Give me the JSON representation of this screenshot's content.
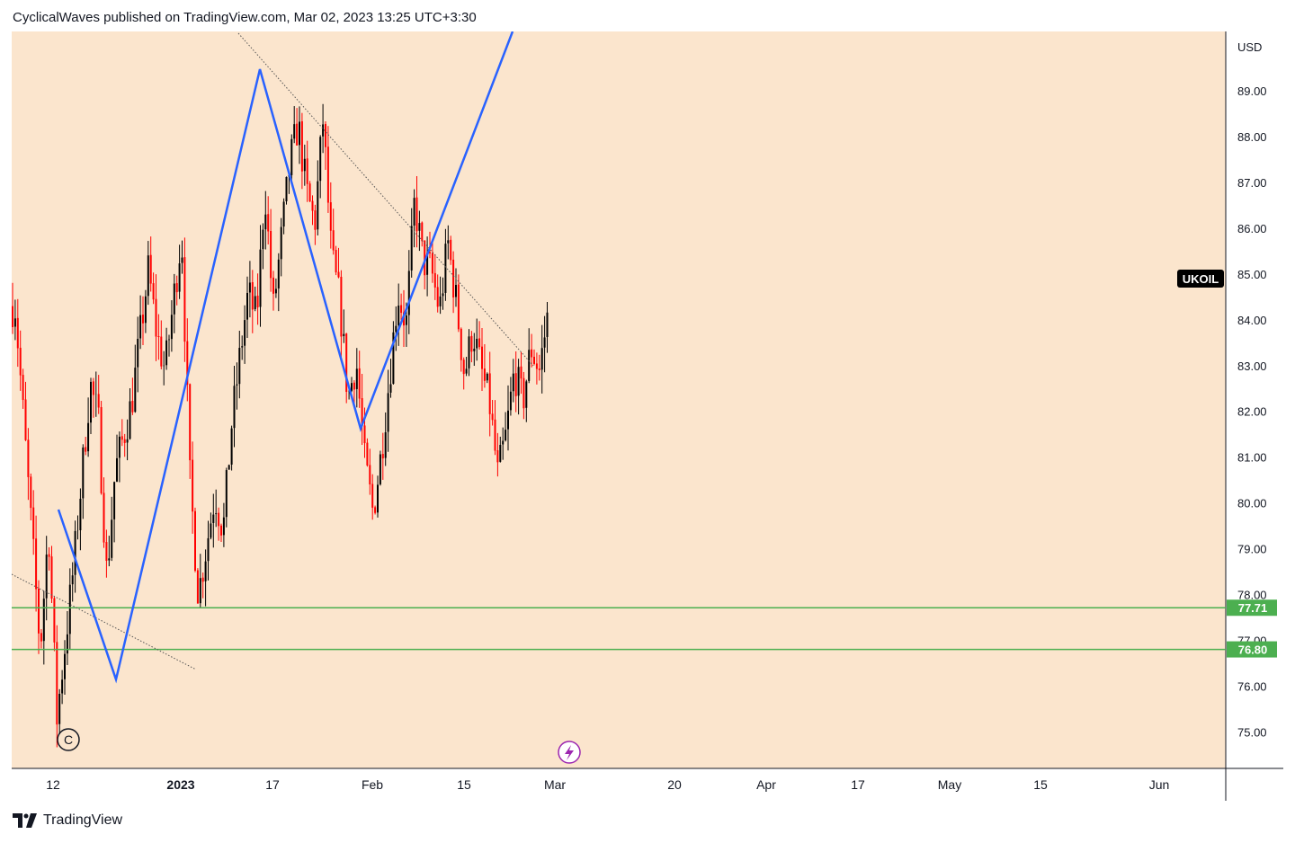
{
  "header": {
    "publisher": "CyclicalWaves",
    "published_text": "CyclicalWaves published on TradingView.com, Mar 02, 2023 13:25 UTC+3:30"
  },
  "footer": {
    "brand": "TradingView"
  },
  "colors": {
    "background": "#fbe5cd",
    "candle_up": "#000000",
    "candle_down": "#ff0000",
    "wave_line": "#2962ff",
    "support_line": "#4caf50",
    "trend_line": "#555555",
    "symbol_badge_bg": "#000000",
    "level_badge_bg": "#4caf50",
    "event_icon": "#9c27b0"
  },
  "chart_data": {
    "type": "candlestick",
    "symbol": "UKOIL",
    "currency": "USD",
    "ylim": [
      74.2,
      90.3
    ],
    "y_ticks": [
      "89.00",
      "88.00",
      "87.00",
      "86.00",
      "85.00",
      "84.00",
      "83.00",
      "82.00",
      "81.00",
      "80.00",
      "79.00",
      "78.00",
      "77.00",
      "76.00",
      "75.00"
    ],
    "x_ticks": [
      "12",
      "2023",
      "17",
      "Feb",
      "15",
      "Mar",
      "20",
      "Apr",
      "17",
      "May",
      "15",
      "Jun"
    ],
    "support_levels": [
      {
        "label": "77.71",
        "value": 77.71
      },
      {
        "label": "76.80",
        "value": 76.8
      }
    ],
    "wave_label": "C",
    "price_path": [
      {
        "d": 0,
        "p": 84.3
      },
      {
        "d": 3,
        "p": 76.8
      },
      {
        "d": 4,
        "p": 79.5
      },
      {
        "d": 5,
        "p": 75.3
      },
      {
        "d": 7,
        "p": 78.6
      },
      {
        "d": 9,
        "p": 82.6
      },
      {
        "d": 10,
        "p": 81.8
      },
      {
        "d": 11,
        "p": 78.4
      },
      {
        "d": 12,
        "p": 80.7
      },
      {
        "d": 14,
        "p": 82.2
      },
      {
        "d": 16,
        "p": 85.1
      },
      {
        "d": 17,
        "p": 83.7
      },
      {
        "d": 18,
        "p": 82.9
      },
      {
        "d": 20,
        "p": 85.9
      },
      {
        "d": 21,
        "p": 80.5
      },
      {
        "d": 22,
        "p": 78.0
      },
      {
        "d": 24,
        "p": 80.2
      },
      {
        "d": 25,
        "p": 79.4
      },
      {
        "d": 26,
        "p": 81.7
      },
      {
        "d": 27,
        "p": 83.2
      },
      {
        "d": 28,
        "p": 84.6
      },
      {
        "d": 29,
        "p": 84.0
      },
      {
        "d": 30,
        "p": 86.9
      },
      {
        "d": 31,
        "p": 84.2
      },
      {
        "d": 33,
        "p": 87.4
      },
      {
        "d": 34,
        "p": 88.3
      },
      {
        "d": 35,
        "p": 86.8
      },
      {
        "d": 36,
        "p": 86.1
      },
      {
        "d": 37,
        "p": 88.4
      },
      {
        "d": 38,
        "p": 85.4
      },
      {
        "d": 39,
        "p": 84.4
      },
      {
        "d": 40,
        "p": 82.3
      },
      {
        "d": 41,
        "p": 83.1
      },
      {
        "d": 42,
        "p": 80.9
      },
      {
        "d": 43,
        "p": 79.8
      },
      {
        "d": 44,
        "p": 81.1
      },
      {
        "d": 45,
        "p": 82.8
      },
      {
        "d": 46,
        "p": 84.6
      },
      {
        "d": 47,
        "p": 83.9
      },
      {
        "d": 48,
        "p": 86.6
      },
      {
        "d": 49,
        "p": 85.3
      },
      {
        "d": 50,
        "p": 85.1
      },
      {
        "d": 51,
        "p": 84.2
      },
      {
        "d": 52,
        "p": 85.7
      },
      {
        "d": 53,
        "p": 84.4
      },
      {
        "d": 54,
        "p": 82.8
      },
      {
        "d": 55,
        "p": 83.8
      },
      {
        "d": 56,
        "p": 82.9
      },
      {
        "d": 57,
        "p": 82.2
      },
      {
        "d": 58,
        "p": 80.6
      },
      {
        "d": 59,
        "p": 81.5
      },
      {
        "d": 60,
        "p": 82.9
      },
      {
        "d": 61,
        "p": 82.2
      },
      {
        "d": 62,
        "p": 83.4
      },
      {
        "d": 63,
        "p": 82.9
      },
      {
        "d": 64,
        "p": 84.1
      }
    ]
  }
}
